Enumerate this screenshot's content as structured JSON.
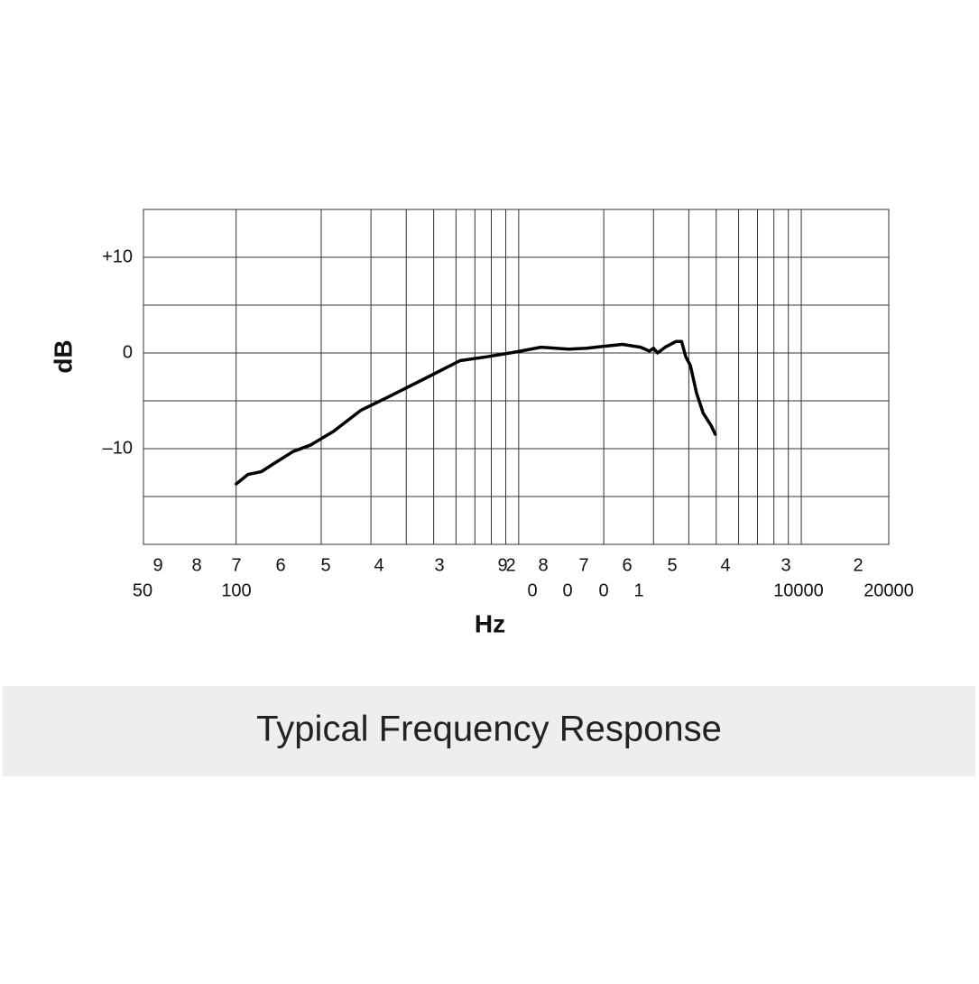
{
  "chart_data": {
    "type": "line",
    "caption": "Typical Frequency Response",
    "xlabel": "Hz",
    "ylabel": "dB",
    "xlog": true,
    "xlim": [
      47,
      20400
    ],
    "ylim": [
      -20,
      15
    ],
    "yticks": [
      {
        "value": 10,
        "label": "+10"
      },
      0,
      {
        "value": -10,
        "label": "–10"
      }
    ],
    "ygrid": [
      -15,
      -10,
      -5,
      0,
      5,
      10
    ],
    "xgrid": [
      100,
      200,
      300,
      400,
      500,
      600,
      700,
      800,
      900,
      1000,
      2000,
      3000,
      4000,
      5000,
      6000,
      7000,
      8000,
      9000,
      10000
    ],
    "x_label_upper": [
      "9",
      "8",
      "7",
      "6",
      "5",
      "4",
      "3",
      "9",
      "2",
      "8",
      "7",
      "6",
      "5",
      "4",
      "3",
      "2"
    ],
    "x_label_lower": [
      "50",
      "100",
      "0",
      "0",
      "0",
      "1",
      "10000",
      "20000"
    ],
    "series": [
      {
        "name": "Response",
        "color": "#000000",
        "x": [
          100,
          110,
          123,
          137,
          159,
          184,
          221,
          276,
          345,
          478,
          620,
          773,
          978,
          1200,
          1500,
          1740,
          2000,
          2330,
          2700,
          2900,
          3000,
          3100,
          3300,
          3600,
          3770,
          3900,
          4050,
          4260,
          4500,
          4800,
          4960
        ],
        "values": [
          -13.7,
          -12.7,
          -12.4,
          -11.5,
          -10.3,
          -9.6,
          -8.2,
          -6.0,
          -4.6,
          -2.5,
          -0.8,
          -0.4,
          0.1,
          0.6,
          0.4,
          0.5,
          0.7,
          0.9,
          0.6,
          0.2,
          0.5,
          0,
          0.6,
          1.2,
          1.2,
          -0.4,
          -1.3,
          -4.2,
          -6.3,
          -7.6,
          -8.5
        ]
      }
    ]
  }
}
